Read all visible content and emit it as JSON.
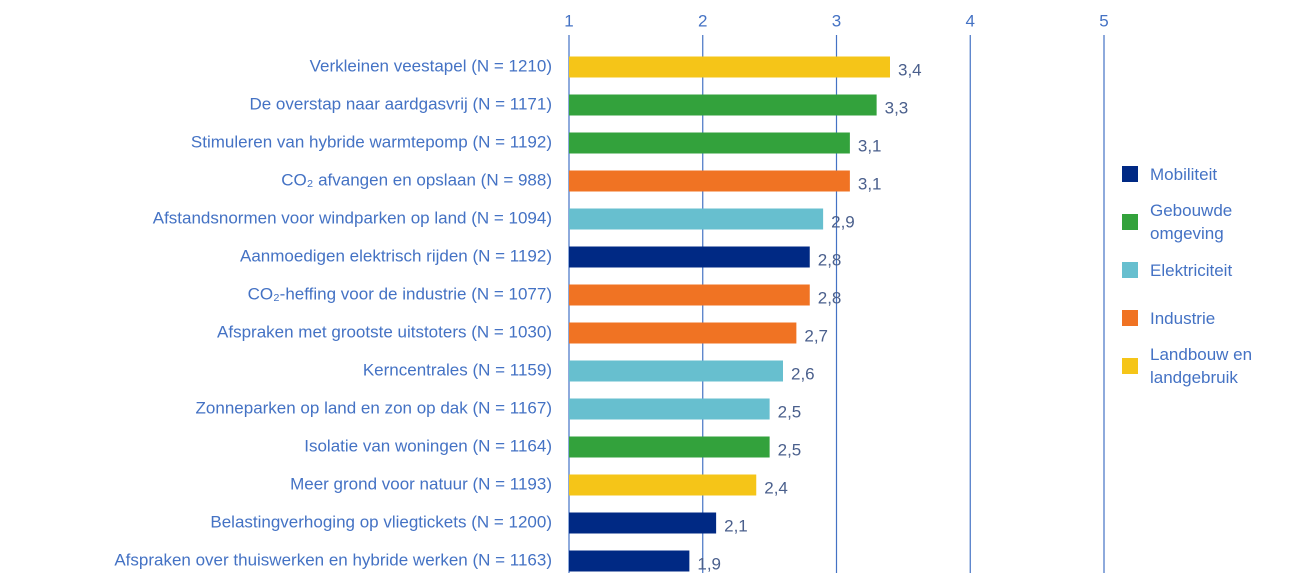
{
  "chart_data": {
    "type": "bar",
    "orientation": "horizontal",
    "categories": [
      "Verkleinen veestapel (N = 1210)",
      "De overstap naar aardgasvrij (N = 1171)",
      "Stimuleren van hybride warmtepomp (N = 1192)",
      "CO₂ afvangen en opslaan (N = 988)",
      "Afstandsnormen voor windparken op land (N = 1094)",
      "Aanmoedigen elektrisch rijden (N = 1192)",
      "CO₂-heffing voor de industrie (N = 1077)",
      "Afspraken met grootste uitstoters (N = 1030)",
      "Kerncentrales (N = 1159)",
      "Zonneparken op land en zon op dak (N = 1167)",
      "Isolatie van woningen (N = 1164)",
      "Meer grond voor natuur (N = 1193)",
      "Belastingverhoging op vliegtickets (N = 1200)",
      "Afspraken over thuiswerken en hybride werken (N = 1163)"
    ],
    "series": [
      {
        "name": "Mobiliteit",
        "color": "#002984",
        "values": [
          null,
          null,
          null,
          null,
          null,
          2.8,
          null,
          null,
          null,
          null,
          null,
          null,
          2.1,
          1.9
        ],
        "value_labels": [
          null,
          null,
          null,
          null,
          null,
          "2,8",
          null,
          null,
          null,
          null,
          null,
          null,
          "2,1",
          "1,9"
        ]
      },
      {
        "name": "Gebouwde omgeving",
        "color": "#33a23c",
        "values": [
          null,
          3.3,
          3.1,
          null,
          null,
          null,
          null,
          null,
          null,
          null,
          2.5,
          null,
          null,
          null
        ],
        "value_labels": [
          null,
          "3,3",
          "3,1",
          null,
          null,
          null,
          null,
          null,
          null,
          null,
          "2,5",
          null,
          null,
          null
        ]
      },
      {
        "name": "Elektriciteit",
        "color": "#67bfcf",
        "values": [
          null,
          null,
          null,
          null,
          2.9,
          null,
          null,
          null,
          2.6,
          2.5,
          null,
          null,
          null,
          null
        ],
        "value_labels": [
          null,
          null,
          null,
          null,
          "2,9",
          null,
          null,
          null,
          "2,6",
          "2,5",
          null,
          null,
          null,
          null
        ]
      },
      {
        "name": "Industrie",
        "color": "#f07323",
        "values": [
          null,
          null,
          null,
          3.1,
          null,
          null,
          2.8,
          2.7,
          null,
          null,
          null,
          null,
          null,
          null
        ],
        "value_labels": [
          null,
          null,
          null,
          "3,1",
          null,
          null,
          "2,8",
          "2,7",
          null,
          null,
          null,
          null,
          null,
          null
        ]
      },
      {
        "name": "Landbouw en landgebruik",
        "color": "#f5c518",
        "values": [
          3.4,
          null,
          null,
          null,
          null,
          null,
          null,
          null,
          null,
          null,
          null,
          2.4,
          null,
          null
        ],
        "value_labels": [
          "3,4",
          null,
          null,
          null,
          null,
          null,
          null,
          null,
          null,
          null,
          null,
          "2,4",
          null,
          null
        ]
      }
    ],
    "xlim": [
      1,
      5
    ],
    "xticks": [
      1,
      2,
      3,
      4,
      5
    ],
    "grid": true,
    "legend": "right"
  }
}
